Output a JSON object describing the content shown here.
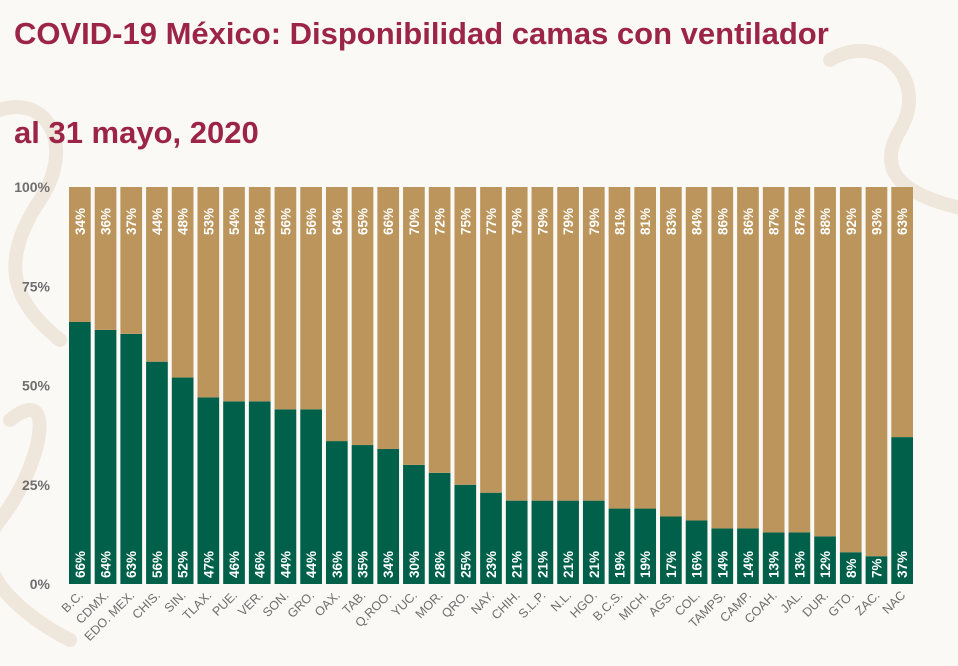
{
  "title_line1": "COVID-19 México: Disponibilidad camas con ventilador",
  "title_line2": "al 31 mayo, 2020",
  "colors": {
    "occupied": "#00604a",
    "available": "#bc955c",
    "title": "#9b2447",
    "axis_text": "#6e6e6e"
  },
  "chart_data": {
    "type": "bar",
    "stacked": true,
    "percent_stacked": true,
    "ylim": [
      0,
      100
    ],
    "yticks": [
      "0%",
      "25%",
      "50%",
      "75%",
      "100%"
    ],
    "grid": false,
    "legend": "none",
    "categories": [
      "B.C.",
      "CDMX.",
      "EDO. MEX.",
      "CHIS.",
      "SIN.",
      "TLAX.",
      "PUE.",
      "VER.",
      "SON.",
      "GRO.",
      "OAX.",
      "TAB.",
      "Q.ROO.",
      "YUC.",
      "MOR.",
      "QRO.",
      "NAY.",
      "CHIH.",
      "S.L.P.",
      "N.L.",
      "HGO.",
      "B.C.S.",
      "MICH.",
      "AGS.",
      "COL.",
      "TAMPS.",
      "CAMP.",
      "COAH.",
      "JAL.",
      "DUR.",
      "GTO.",
      "ZAC.",
      "NAC"
    ],
    "series": [
      {
        "color": "#00604a",
        "values": [
          66,
          64,
          63,
          56,
          52,
          47,
          46,
          46,
          44,
          44,
          36,
          35,
          34,
          30,
          28,
          25,
          23,
          21,
          21,
          21,
          21,
          19,
          19,
          17,
          16,
          14,
          14,
          13,
          13,
          12,
          8,
          7,
          37
        ],
        "labels": [
          "66%",
          "64%",
          "63%",
          "56%",
          "52%",
          "47%",
          "46%",
          "46%",
          "44%",
          "44%",
          "36%",
          "35%",
          "34%",
          "30%",
          "28%",
          "25%",
          "23%",
          "21%",
          "21%",
          "21%",
          "21%",
          "19%",
          "19%",
          "17%",
          "16%",
          "14%",
          "14%",
          "13%",
          "13%",
          "12%",
          "8%",
          "7%",
          "37%"
        ]
      },
      {
        "color": "#bc955c",
        "values": [
          34,
          36,
          37,
          44,
          48,
          53,
          54,
          54,
          56,
          56,
          64,
          65,
          66,
          70,
          72,
          75,
          77,
          79,
          79,
          79,
          79,
          81,
          81,
          83,
          84,
          86,
          86,
          87,
          87,
          88,
          92,
          93,
          63
        ],
        "labels": [
          "34%",
          "36%",
          "37%",
          "44%",
          "48%",
          "53%",
          "54%",
          "54%",
          "56%",
          "56%",
          "64%",
          "65%",
          "66%",
          "70%",
          "72%",
          "75%",
          "77%",
          "79%",
          "79%",
          "79%",
          "79%",
          "81%",
          "81%",
          "83%",
          "84%",
          "86%",
          "86%",
          "87%",
          "87%",
          "88%",
          "92%",
          "93%",
          "63%"
        ]
      }
    ]
  }
}
